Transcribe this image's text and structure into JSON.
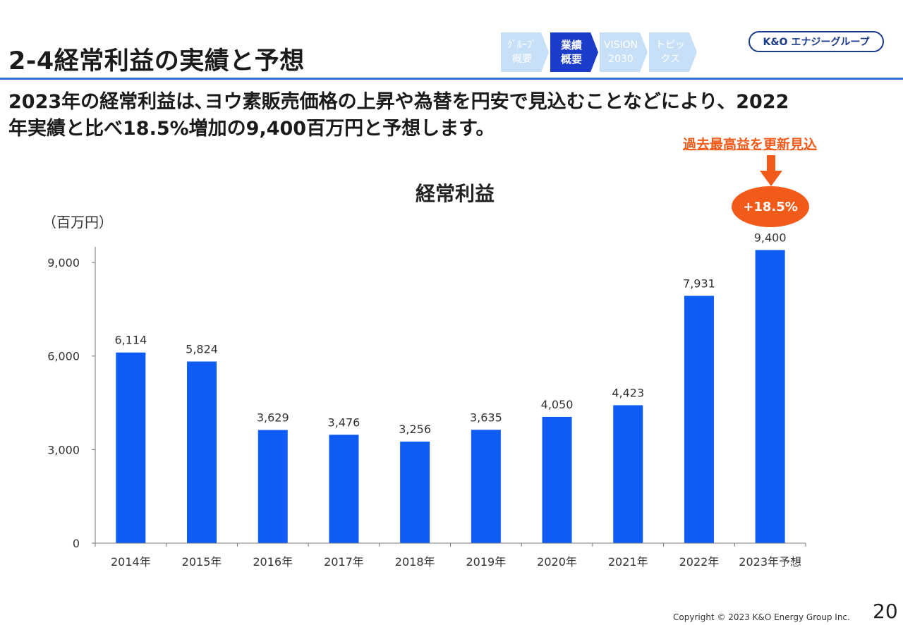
{
  "slide": {
    "title": "2-4経常利益の実績と予想",
    "description_line1": "2023年の経常利益は､ヨウ素販売価格の上昇や為替を円安で見込むことなどにより、2022",
    "description_line2": "年実績と比べ18.5%増加の9,400百万円と予想します。",
    "page_number": "20",
    "copyright": "Copyright © 2023 K&O Energy Group Inc."
  },
  "nav": {
    "steps": [
      {
        "line1": "ｸﾞﾙｰﾌﾟ",
        "line2": "概要",
        "active": false
      },
      {
        "line1": "業績",
        "line2": "概要",
        "active": true
      },
      {
        "line1": "VISION",
        "line2": "2030",
        "active": false
      },
      {
        "line1": "トピッ",
        "line2": "クス",
        "active": false
      }
    ]
  },
  "logo": {
    "text": "K&O エナジーグループ"
  },
  "callout": {
    "text": "過去最高益を更新見込",
    "badge": "+18.5%"
  },
  "colors": {
    "bar": "#0f5cf5",
    "accent": "#f25a1a",
    "rule": "#2f6fd8",
    "nav_active": "#1a3cc8",
    "nav_inactive": "#c7e0f7"
  },
  "chart_data": {
    "type": "bar",
    "title": "経常利益",
    "unit_label": "（百万円）",
    "categories": [
      "2014年",
      "2015年",
      "2016年",
      "2017年",
      "2018年",
      "2019年",
      "2020年",
      "2021年",
      "2022年",
      "2023年予想"
    ],
    "values": [
      6114,
      5824,
      3629,
      3476,
      3256,
      3635,
      4050,
      4423,
      7931,
      9400
    ],
    "value_labels": [
      "6,114",
      "5,824",
      "3,629",
      "3,476",
      "3,256",
      "3,635",
      "4,050",
      "4,423",
      "7,931",
      "9,400"
    ],
    "yticks": [
      0,
      3000,
      6000,
      9000
    ],
    "ytick_labels": [
      "0",
      "3,000",
      "6,000",
      "9,000"
    ],
    "ylim": [
      0,
      9500
    ],
    "grid": false,
    "legend": "none"
  }
}
